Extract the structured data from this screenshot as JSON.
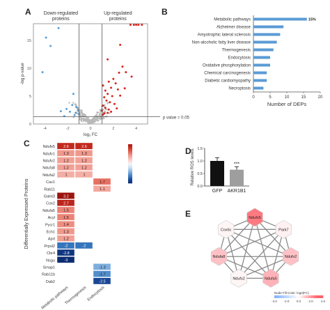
{
  "panels": {
    "a": "A",
    "b": "B",
    "c": "C",
    "d": "D",
    "e": "E"
  },
  "chart_data": [
    {
      "panel": "A",
      "type": "scatter",
      "xlabel": "log₂ FC",
      "ylabel": "-log p-value",
      "region_labels": [
        "Down-regulated\nproteins",
        "Up-regulated\nproteins"
      ],
      "threshold_label": "p value = 0.05",
      "xlim": [
        -5,
        5
      ],
      "ylim": [
        0,
        18
      ],
      "x_ticks": [
        "-4",
        "-2",
        "0",
        "2",
        "4"
      ],
      "y_ticks": [
        "0",
        "5",
        "10",
        "15"
      ],
      "colors": {
        "down": "#5a9fd4",
        "up": "#d7261e",
        "ns": "#b9b9b9"
      },
      "down": [
        [
          -3.9,
          15.5
        ],
        [
          -3.5,
          14.0
        ],
        [
          -2.8,
          17.2
        ],
        [
          -4.2,
          9.3
        ],
        [
          -1.5,
          5.4
        ],
        [
          -1.2,
          3.0
        ],
        [
          -2.1,
          2.7
        ],
        [
          -1.8,
          2.2
        ],
        [
          -2.6,
          2.3
        ],
        [
          -1.3,
          2.0
        ],
        [
          -1.6,
          3.4
        ],
        [
          -1.1,
          2.5
        ],
        [
          -2.3,
          1.4
        ],
        [
          -1.4,
          1.6
        ],
        [
          -1.0,
          1.8
        ]
      ],
      "up": [
        [
          3.5,
          17.8
        ],
        [
          3.8,
          17.8
        ],
        [
          4.0,
          17.8
        ],
        [
          4.2,
          17.8
        ],
        [
          4.5,
          17.8
        ],
        [
          2.6,
          14.2
        ],
        [
          1.5,
          11.6
        ],
        [
          2.8,
          10.3
        ],
        [
          3.1,
          9.3
        ],
        [
          2.5,
          9.2
        ],
        [
          3.6,
          8.5
        ],
        [
          2.0,
          8.1
        ],
        [
          1.6,
          7.6
        ],
        [
          2.2,
          7.3
        ],
        [
          1.1,
          6.9
        ],
        [
          1.8,
          6.5
        ],
        [
          1.3,
          6.0
        ],
        [
          2.4,
          6.2
        ],
        [
          3.0,
          6.4
        ],
        [
          1.5,
          5.4
        ],
        [
          1.9,
          5.0
        ],
        [
          1.2,
          4.8
        ],
        [
          2.6,
          5.1
        ],
        [
          1.4,
          4.2
        ],
        [
          1.7,
          3.9
        ],
        [
          2.1,
          3.6
        ],
        [
          1.1,
          3.3
        ],
        [
          1.3,
          2.9
        ],
        [
          1.6,
          2.6
        ],
        [
          1.0,
          2.4
        ],
        [
          1.2,
          1.9
        ],
        [
          1.5,
          2.0
        ],
        [
          1.1,
          1.7
        ],
        [
          1.8,
          2.2
        ],
        [
          2.3,
          2.8
        ]
      ]
    },
    {
      "panel": "B",
      "type": "bar",
      "xlabel": "Number of DEPs",
      "categories": [
        "Metabolic pathways",
        "Alzheimer disease",
        "Amyotrophic lateral sclerosis",
        "Non-alcoholic fatty liver disease",
        "Thermogenesis",
        "Endocytosis",
        "Oxidative phosphorylation",
        "Chemical carcinogenesis",
        "Diabetic cardiomyopathy",
        "Necroptosis"
      ],
      "values": [
        16,
        9,
        8,
        7,
        6,
        5,
        5,
        4,
        4,
        3
      ],
      "bar_label": "15%",
      "xlim": [
        0,
        20
      ],
      "x_ticks": [
        "0",
        "5",
        "10",
        "15",
        "20"
      ],
      "bar_color": "#5b9bd5"
    },
    {
      "panel": "C",
      "type": "heatmap",
      "ylabel": "Differentially Expressed Proteins",
      "columns": [
        "Metabolic pathways",
        "Thermogenesis",
        "Endocytosis"
      ],
      "rows": [
        "Ndufs5",
        "Ndufv1",
        "Ndufv2",
        "Ndufa8",
        "Ndufa2",
        "Cav1",
        "Rab11",
        "Galnt3",
        "Cox2",
        "Ndufa5",
        "Acyl",
        "Pycr1",
        "Ech1",
        "Aprt",
        "Prpsl2",
        "Cbr4",
        "Nsgu",
        "Smap1",
        "Rab11b",
        "Dab2"
      ],
      "values": [
        [
          2.6,
          2.6,
          null
        ],
        [
          1.3,
          1.3,
          null
        ],
        [
          1.2,
          1.2,
          null
        ],
        [
          1.2,
          1.2,
          null
        ],
        [
          1,
          1,
          null
        ],
        [
          null,
          null,
          1.7
        ],
        [
          null,
          null,
          1.1
        ],
        [
          3.2,
          null,
          null
        ],
        [
          2.7,
          null,
          null
        ],
        [
          1.5,
          null,
          null
        ],
        [
          1.5,
          null,
          null
        ],
        [
          1.4,
          null,
          null
        ],
        [
          1.3,
          null,
          null
        ],
        [
          1.2,
          null,
          null
        ],
        [
          -2,
          -2,
          null
        ],
        [
          -2.8,
          null,
          null
        ],
        [
          -3,
          null,
          null
        ],
        [
          null,
          null,
          -1.3
        ],
        [
          null,
          null,
          -1.7
        ],
        [
          null,
          null,
          -2.5
        ]
      ],
      "legend_range": [
        -3,
        3
      ]
    },
    {
      "panel": "D",
      "type": "bar",
      "categories": [
        "GFP",
        "AKR1B1"
      ],
      "values": [
        1.0,
        0.65
      ],
      "errors": [
        0.13,
        0.12
      ],
      "ylabel": "Relative ROS levels",
      "ylim": [
        0,
        1.5
      ],
      "y_ticks": [
        "0.0",
        "0.5",
        "1.0",
        "1.5"
      ],
      "annotation": "***",
      "colors": [
        "#111111",
        "#9e9e9e"
      ]
    },
    {
      "panel": "E",
      "type": "network",
      "nodes": [
        {
          "id": "Ndufs5",
          "fc": 2.6
        },
        {
          "id": "Park7",
          "fc": 0.3
        },
        {
          "id": "Ndufv2",
          "fc": 1.2
        },
        {
          "id": "Ndufa5",
          "fc": 1.5
        },
        {
          "id": "Ndufs2",
          "fc": 0.2
        },
        {
          "id": "Ndufa8",
          "fc": 1.2
        },
        {
          "id": "Cox6c",
          "fc": 0.2
        }
      ],
      "edges": [
        [
          "Ndufs5",
          "Park7"
        ],
        [
          "Ndufs5",
          "Ndufv2"
        ],
        [
          "Ndufs5",
          "Ndufa5"
        ],
        [
          "Ndufs5",
          "Ndufs2"
        ],
        [
          "Ndufs5",
          "Ndufa8"
        ],
        [
          "Ndufs5",
          "Cox6c"
        ],
        [
          "Park7",
          "Ndufv2"
        ],
        [
          "Park7",
          "Ndufa5"
        ],
        [
          "Park7",
          "Ndufs2"
        ],
        [
          "Park7",
          "Ndufa8"
        ],
        [
          "Park7",
          "Cox6c"
        ],
        [
          "Ndufv2",
          "Ndufa5"
        ],
        [
          "Ndufv2",
          "Ndufs2"
        ],
        [
          "Ndufv2",
          "Ndufa8"
        ],
        [
          "Ndufv2",
          "Cox6c"
        ],
        [
          "Ndufa5",
          "Ndufs2"
        ],
        [
          "Ndufa5",
          "Ndufa8"
        ],
        [
          "Ndufa5",
          "Cox6c"
        ],
        [
          "Ndufs2",
          "Ndufa8"
        ],
        [
          "Ndufs2",
          "Cox6c"
        ],
        [
          "Ndufa8",
          "Cox6c"
        ]
      ],
      "legend_title": "Node Fill Color: log2(FC)",
      "legend_ticks": [
        "-4.0",
        "-2.0",
        "0.0",
        "2.0",
        "4.0"
      ]
    }
  ]
}
